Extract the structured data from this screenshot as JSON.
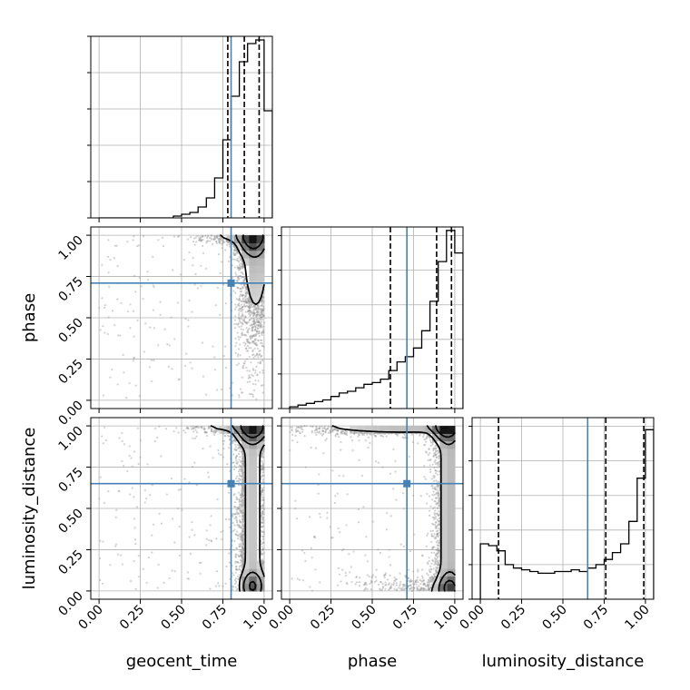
{
  "chart_data": {
    "type": "corner",
    "parameters": [
      "geocent_time",
      "phase",
      "luminosity_distance"
    ],
    "axis_labels": {
      "geocent_time": "geocent_time",
      "phase": "phase",
      "luminosity_distance": "luminosity_distance"
    },
    "axis_range": [
      -0.05,
      1.05
    ],
    "tick_values": [
      0.0,
      0.25,
      0.5,
      0.75,
      1.0
    ],
    "tick_labels": [
      "0.00",
      "0.25",
      "0.50",
      "0.75",
      "1.00"
    ],
    "grid": true,
    "colors": {
      "histogram": "#000000",
      "truth": "#4682b4",
      "quantile": "#000000",
      "scatter": "#9a9a9a",
      "grid": "#b0b0b0"
    },
    "truths": {
      "geocent_time": 0.8,
      "phase": 0.71,
      "luminosity_distance": 0.65
    },
    "quantiles": {
      "geocent_time": [
        0.78,
        0.88,
        0.97
      ],
      "phase": [
        0.61,
        0.89,
        0.98
      ],
      "luminosity_distance": [
        0.11,
        0.76,
        0.99
      ]
    },
    "histograms": {
      "geocent_time": {
        "bin_edges": [
          0.0,
          0.05,
          0.1,
          0.15,
          0.2,
          0.25,
          0.3,
          0.35,
          0.4,
          0.45,
          0.5,
          0.55,
          0.6,
          0.65,
          0.7,
          0.75,
          0.8,
          0.85,
          0.9,
          0.95,
          1.0,
          1.05
        ],
        "counts": [
          0,
          0,
          0,
          0,
          0,
          0,
          0,
          0,
          0,
          1,
          2,
          3,
          6,
          11,
          22,
          43,
          67,
          86,
          96,
          98,
          59
        ]
      },
      "phase": {
        "bin_edges": [
          0.0,
          0.05,
          0.1,
          0.15,
          0.2,
          0.25,
          0.3,
          0.35,
          0.4,
          0.45,
          0.5,
          0.55,
          0.6,
          0.65,
          0.7,
          0.75,
          0.8,
          0.85,
          0.9,
          0.95,
          1.0,
          1.05
        ],
        "counts": [
          1,
          2,
          3,
          4,
          5,
          7,
          9,
          10,
          12,
          14,
          15,
          17,
          22,
          27,
          30,
          35,
          45,
          62,
          85,
          103,
          90
        ]
      },
      "luminosity_distance": {
        "bin_edges": [
          -0.05,
          0.0,
          0.05,
          0.1,
          0.15,
          0.2,
          0.25,
          0.3,
          0.35,
          0.4,
          0.45,
          0.5,
          0.55,
          0.6,
          0.65,
          0.7,
          0.75,
          0.8,
          0.85,
          0.9,
          0.95,
          1.0,
          1.05
        ],
        "counts": [
          0,
          32,
          31,
          28,
          20,
          18,
          17,
          16,
          15,
          15,
          16,
          16,
          17,
          16,
          18,
          20,
          23,
          27,
          32,
          45,
          70,
          98
        ]
      }
    },
    "density_peaks": {
      "phase_vs_geocent_time": [
        [
          0.92,
          0.97
        ]
      ],
      "luminosity_distance_vs_geocent_time": [
        [
          0.92,
          0.99
        ],
        [
          0.93,
          0.03
        ]
      ],
      "luminosity_distance_vs_phase": [
        [
          0.95,
          0.99
        ],
        [
          0.97,
          0.02
        ]
      ]
    },
    "marginal_y_range": {
      "geocent_time": [
        0,
        100
      ],
      "phase": [
        0,
        105
      ],
      "luminosity_distance": [
        0,
        105
      ]
    }
  }
}
